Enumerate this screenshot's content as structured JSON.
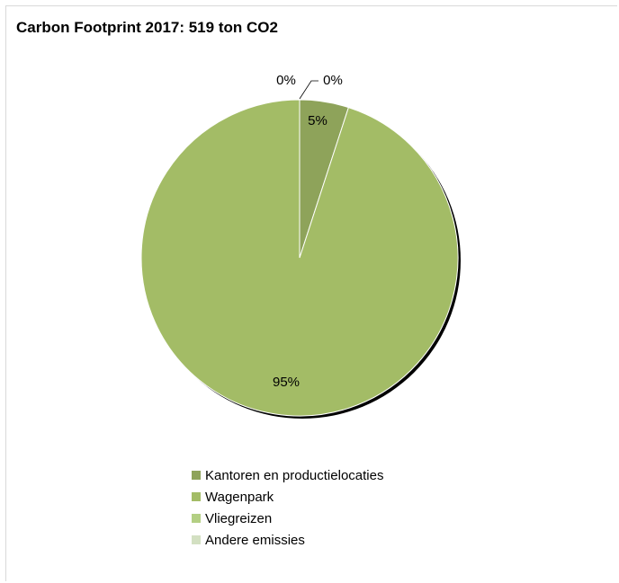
{
  "chart_data": {
    "type": "pie",
    "title": "Carbon Footprint 2017: 519 ton CO2",
    "categories": [
      "Kantoren en productielocaties",
      "Wagenpark",
      "Vliegreizen",
      "Andere emissies"
    ],
    "values": [
      5,
      95,
      0,
      0
    ],
    "data_labels": [
      "5%",
      "95%",
      "0%",
      "0%"
    ],
    "colors": [
      "#8ea35a",
      "#a3bc66",
      "#b3cf83",
      "#d3e0c2"
    ],
    "legend_position": "bottom"
  }
}
